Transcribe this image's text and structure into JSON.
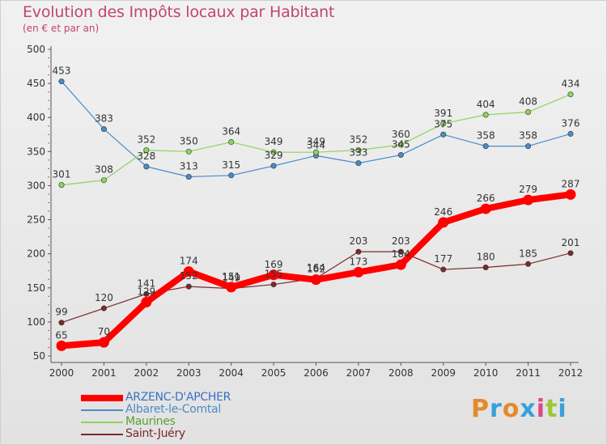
{
  "header": {
    "title": "Evolution des Impôts locaux par Habitant",
    "subtitle": "(en € et par an)"
  },
  "logo": {
    "text": "Proxiti",
    "colors": [
      "#e38b2a",
      "#3aa0d8",
      "#e38b2a",
      "#3aa0d8",
      "#d64a8a",
      "#9bc83a",
      "#3aa0d8"
    ]
  },
  "chart_data": {
    "type": "line",
    "title": "Evolution des Impôts locaux par Habitant",
    "subtitle": "(en € et par an)",
    "x": [
      "2000",
      "2001",
      "2002",
      "2003",
      "2004",
      "2005",
      "2006",
      "2007",
      "2008",
      "2009",
      "2010",
      "2011",
      "2012"
    ],
    "ylim": [
      50,
      500
    ],
    "yticks": [
      50,
      100,
      150,
      200,
      250,
      300,
      350,
      400,
      450,
      500
    ],
    "grid": false,
    "legend_position": "bottom-left",
    "series": [
      {
        "name": "ARZENC-D'APCHER",
        "color": "#ff0000",
        "values": [
          65,
          70,
          129,
          174,
          151,
          169,
          162,
          173,
          184,
          246,
          266,
          279,
          287
        ],
        "labels": [
          "65",
          "70",
          "129",
          "174",
          "151",
          "169",
          "162",
          "173",
          "184",
          "246",
          "266",
          "279",
          "287"
        ]
      },
      {
        "name": "Albaret-le-Comtal",
        "color": "#4a8cc8",
        "values": [
          453,
          383,
          328,
          313,
          315,
          329,
          344,
          333,
          345,
          375,
          358,
          358,
          376
        ],
        "labels": [
          "453",
          "383",
          "328",
          "313",
          "315",
          "329",
          "344",
          "333",
          "345",
          "375",
          "358",
          "358",
          "376"
        ]
      },
      {
        "name": "Maurines",
        "color": "#8fd45a",
        "values": [
          301,
          308,
          352,
          350,
          364,
          349,
          349,
          352,
          360,
          391,
          404,
          408,
          434
        ],
        "labels": [
          "301",
          "308",
          "352",
          "350",
          "364",
          "349",
          "349",
          "352",
          "360",
          "391",
          "404",
          "408",
          "434"
        ]
      },
      {
        "name": "Saint-Juéry",
        "color": "#7a2a2a",
        "values": [
          99,
          120,
          141,
          152,
          149,
          155,
          164,
          203,
          203,
          177,
          180,
          185,
          201
        ],
        "labels": [
          "99",
          "120",
          "141",
          "152",
          "149",
          "155",
          "164",
          "203",
          "203",
          "177",
          "180",
          "185",
          "201"
        ]
      }
    ]
  }
}
